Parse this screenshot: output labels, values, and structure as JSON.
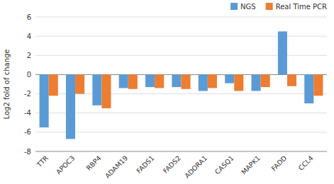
{
  "chart_data": {
    "type": "bar",
    "categories": [
      "TTR",
      "APOC3",
      "RBP4",
      "ADAM19",
      "FADS1",
      "FADS2",
      "ADORA1",
      "CASQ1",
      "MAPK1",
      "FADD",
      "CCL4"
    ],
    "series": [
      {
        "name": "NGS",
        "color": "#5B9BD5",
        "values": [
          -5.5,
          -6.7,
          -3.2,
          -1.4,
          -1.3,
          -1.3,
          -1.7,
          -0.9,
          -1.7,
          4.5,
          -3.0
        ]
      },
      {
        "name": "Real Time PCR",
        "color": "#ED7D31",
        "values": [
          -2.2,
          -2.0,
          -3.5,
          -1.5,
          -1.4,
          -1.5,
          -1.4,
          -1.7,
          -1.3,
          -1.2,
          -2.2
        ]
      }
    ],
    "ylabel": "Log2 fold of change",
    "ylim": [
      -8,
      6
    ],
    "yticks": [
      -8,
      -6,
      -4,
      -2,
      0,
      2,
      4,
      6
    ],
    "grid": true,
    "legend": "upper right"
  }
}
